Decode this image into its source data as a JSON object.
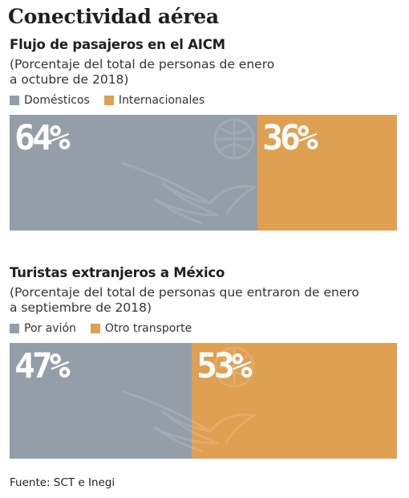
{
  "title": "Conectividad aérea",
  "source": "Fuente: SCT e Inegi",
  "colors": {
    "primary": "#939ea9",
    "secondary": "#dfa052"
  },
  "chart_data": [
    {
      "type": "bar",
      "title": "Flujo de pasajeros en el AICM",
      "subtitle": "(Porcentaje del total de personas de enero a octubre de 2018)",
      "subtitle_lines": [
        "(Porcentaje del total de personas de enero",
        "a octubre de 2018)"
      ],
      "legend": "top-left",
      "categories": [
        "Domésticos",
        "Internacionales"
      ],
      "values": [
        64,
        36
      ],
      "labels": [
        "64%",
        "36%"
      ]
    },
    {
      "type": "bar",
      "title": "Turistas extranjeros a México",
      "subtitle": "(Porcentaje del total de personas que entraron de enero a septiembre de 2018)",
      "subtitle_lines": [
        "(Porcentaje del total de personas que entraron de enero",
        "a septiembre de 2018)"
      ],
      "legend": "top-left",
      "categories": [
        "Por avión",
        "Otro transporte"
      ],
      "values": [
        47,
        53
      ],
      "labels": [
        "47%",
        "53%"
      ]
    }
  ]
}
